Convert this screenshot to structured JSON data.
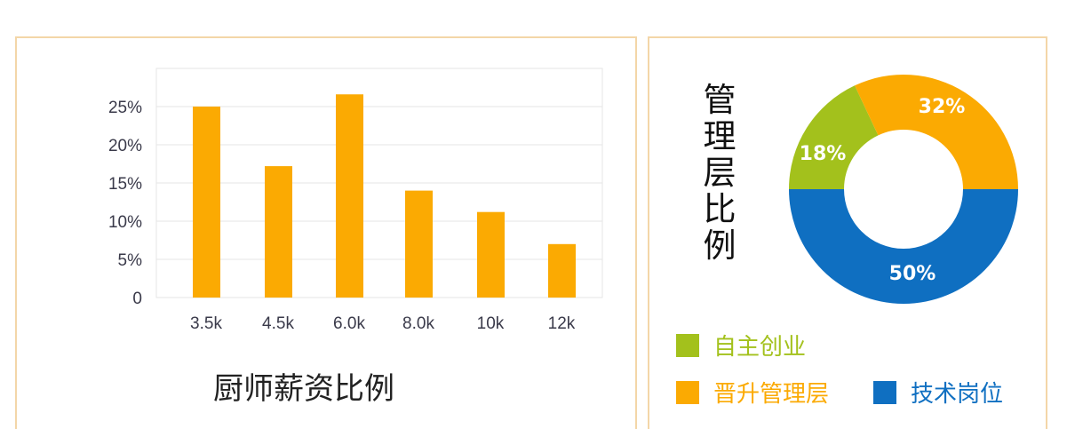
{
  "chart_data": [
    {
      "type": "bar",
      "title": "厨师薪资比例",
      "categories": [
        "3.5k",
        "4.5k",
        "6.0k",
        "8.0k",
        "10k",
        "12k"
      ],
      "values": [
        25,
        17.2,
        26.6,
        14,
        11.2,
        7
      ],
      "ylim": [
        0,
        30
      ],
      "yticks": [
        "0",
        "5%",
        "10%",
        "15%",
        "20%",
        "25%"
      ],
      "grid": true,
      "color": "#fbaa02"
    },
    {
      "type": "pie",
      "variant": "donut",
      "title": "管理层比例",
      "slices": [
        {
          "name": "自主创业",
          "value": 18,
          "label": "18%",
          "color": "#a3c11c"
        },
        {
          "name": "晋升管理层",
          "value": 32,
          "label": "32%",
          "color": "#fbaa02"
        },
        {
          "name": "技术岗位",
          "value": 50,
          "label": "50%",
          "color": "#0f6fc1"
        }
      ],
      "legend": "bottom"
    }
  ]
}
